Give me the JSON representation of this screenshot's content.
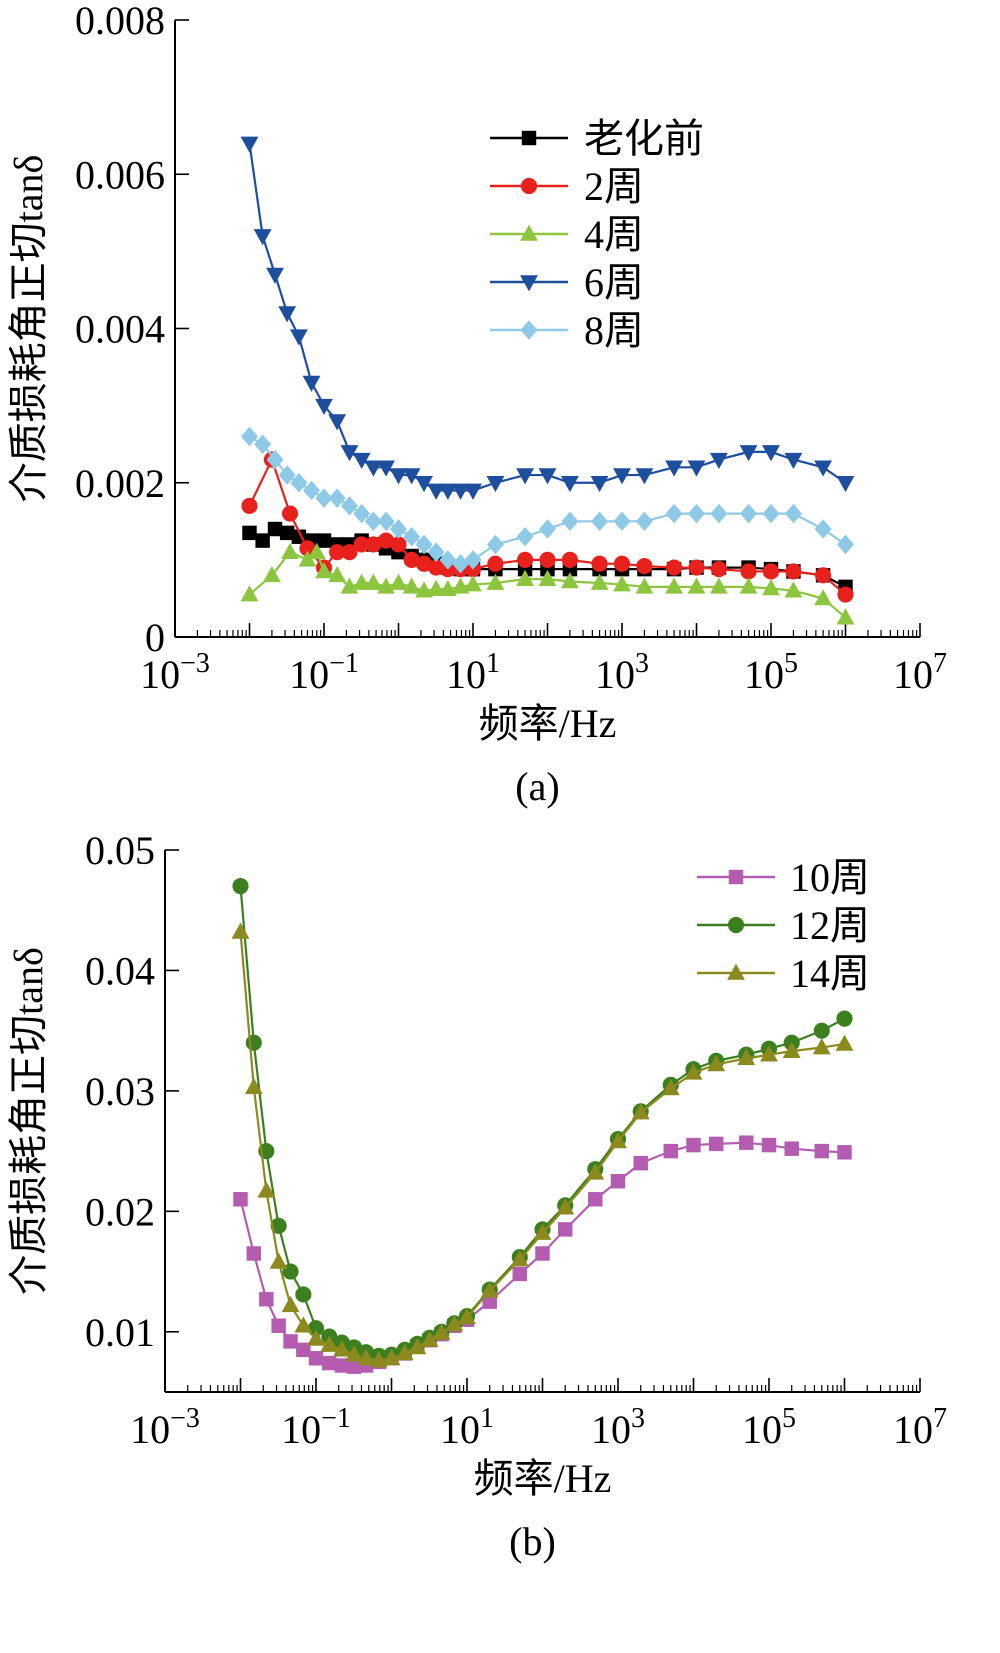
{
  "chart_data": [
    {
      "type": "line",
      "panel_label": "(a)",
      "xlabel": "频率/Hz",
      "ylabel": "介质损耗角正切tanδ",
      "xscale": "log",
      "xlim": [
        0.001,
        10000000
      ],
      "ylim": [
        0,
        0.008
      ],
      "x_ticks": [
        0.001,
        0.1,
        10,
        1000,
        100000,
        10000000
      ],
      "x_tick_labels": [
        {
          "base": "10",
          "exp": "−3"
        },
        {
          "base": "10",
          "exp": "−1"
        },
        {
          "base": "10",
          "exp": "1"
        },
        {
          "base": "10",
          "exp": "3"
        },
        {
          "base": "10",
          "exp": "5"
        },
        {
          "base": "10",
          "exp": "7"
        }
      ],
      "y_ticks": [
        0,
        0.002,
        0.004,
        0.006,
        0.008
      ],
      "y_tick_labels": [
        "0",
        "0.002",
        "0.004",
        "0.006",
        "0.008"
      ],
      "legend_position": "top-right",
      "series": [
        {
          "name": "老化前",
          "color": "#000000",
          "marker": "square",
          "x": [
            0.01,
            0.015,
            0.022,
            0.032,
            0.046,
            0.068,
            0.1,
            0.15,
            0.22,
            0.32,
            0.46,
            0.68,
            1,
            1.5,
            2.2,
            3.2,
            4.6,
            6.8,
            10,
            20,
            50,
            100,
            200,
            500,
            1000,
            2000,
            5000,
            10000,
            20000,
            50000,
            100000,
            200000,
            500000,
            1000000
          ],
          "y": [
            0.00135,
            0.00125,
            0.0014,
            0.00135,
            0.0013,
            0.00125,
            0.00125,
            0.0012,
            0.0012,
            0.00125,
            0.0012,
            0.00115,
            0.0011,
            0.00105,
            0.001,
            0.00095,
            0.0009,
            0.00088,
            0.00088,
            0.00088,
            0.00088,
            0.00088,
            0.00088,
            0.00088,
            0.00088,
            0.00088,
            0.00088,
            0.0009,
            0.0009,
            0.0009,
            0.00088,
            0.00085,
            0.0008,
            0.00065
          ]
        },
        {
          "name": "2周",
          "color": "#e8211c",
          "marker": "circle",
          "x": [
            0.01,
            0.02,
            0.035,
            0.06,
            0.1,
            0.15,
            0.22,
            0.32,
            0.46,
            0.68,
            1,
            1.5,
            2.2,
            3.2,
            4.6,
            6.8,
            10,
            20,
            50,
            100,
            200,
            500,
            1000,
            2000,
            5000,
            10000,
            20000,
            50000,
            100000,
            200000,
            500000,
            1000000
          ],
          "y": [
            0.0017,
            0.0023,
            0.0016,
            0.00115,
            0.0009,
            0.0011,
            0.0011,
            0.0012,
            0.0012,
            0.00125,
            0.0012,
            0.001,
            0.00095,
            0.0009,
            0.00088,
            0.00088,
            0.00088,
            0.00095,
            0.001,
            0.001,
            0.001,
            0.00095,
            0.00095,
            0.00092,
            0.0009,
            0.0009,
            0.00088,
            0.00085,
            0.00085,
            0.00085,
            0.0008,
            0.00055
          ]
        },
        {
          "name": "4周",
          "color": "#8cc63e",
          "marker": "triangle-up",
          "x": [
            0.01,
            0.02,
            0.035,
            0.06,
            0.08,
            0.1,
            0.15,
            0.22,
            0.32,
            0.46,
            0.68,
            1,
            1.5,
            2.2,
            3.2,
            4.6,
            6.8,
            10,
            20,
            50,
            100,
            200,
            500,
            1000,
            2000,
            5000,
            10000,
            20000,
            50000,
            100000,
            200000,
            500000,
            1000000
          ],
          "y": [
            0.00055,
            0.0008,
            0.0011,
            0.001,
            0.0011,
            0.00085,
            0.0008,
            0.00065,
            0.0007,
            0.0007,
            0.00065,
            0.0007,
            0.00065,
            0.0006,
            0.00062,
            0.00062,
            0.00065,
            0.00068,
            0.0007,
            0.00075,
            0.00075,
            0.00072,
            0.0007,
            0.00068,
            0.00065,
            0.00065,
            0.00065,
            0.00065,
            0.00065,
            0.00063,
            0.0006,
            0.0005,
            0.00025
          ]
        },
        {
          "name": "6周",
          "color": "#1e4e9e",
          "marker": "triangle-down",
          "x": [
            0.01,
            0.015,
            0.022,
            0.032,
            0.046,
            0.068,
            0.1,
            0.15,
            0.22,
            0.32,
            0.46,
            0.68,
            1,
            1.5,
            2.2,
            3.2,
            4.6,
            6.8,
            10,
            20,
            50,
            100,
            200,
            500,
            1000,
            2000,
            5000,
            10000,
            20000,
            50000,
            100000,
            200000,
            500000,
            1000000
          ],
          "y": [
            0.0064,
            0.0052,
            0.0047,
            0.0042,
            0.0039,
            0.0033,
            0.003,
            0.0028,
            0.0024,
            0.0023,
            0.0022,
            0.0022,
            0.0021,
            0.0021,
            0.002,
            0.0019,
            0.0019,
            0.0019,
            0.0019,
            0.002,
            0.0021,
            0.0021,
            0.002,
            0.002,
            0.0021,
            0.0021,
            0.0022,
            0.0022,
            0.0023,
            0.0024,
            0.0024,
            0.0023,
            0.0022,
            0.002
          ]
        },
        {
          "name": "8周",
          "color": "#8fc9e8",
          "marker": "diamond",
          "x": [
            0.01,
            0.015,
            0.022,
            0.032,
            0.046,
            0.068,
            0.1,
            0.15,
            0.22,
            0.32,
            0.46,
            0.68,
            1,
            1.5,
            2.2,
            3.2,
            4.6,
            6.8,
            10,
            20,
            50,
            100,
            200,
            500,
            1000,
            2000,
            5000,
            10000,
            20000,
            50000,
            100000,
            200000,
            500000,
            1000000
          ],
          "y": [
            0.0026,
            0.0025,
            0.0023,
            0.0021,
            0.002,
            0.0019,
            0.0018,
            0.0018,
            0.0017,
            0.0016,
            0.0015,
            0.0015,
            0.0014,
            0.0013,
            0.0012,
            0.0011,
            0.001,
            0.00095,
            0.001,
            0.0012,
            0.0013,
            0.0014,
            0.0015,
            0.0015,
            0.0015,
            0.0015,
            0.0016,
            0.0016,
            0.0016,
            0.0016,
            0.0016,
            0.0016,
            0.0014,
            0.0012
          ]
        }
      ]
    },
    {
      "type": "line",
      "panel_label": "(b)",
      "xlabel": "频率/Hz",
      "ylabel": "介质损耗角正切tanδ",
      "xscale": "log",
      "xlim": [
        0.001,
        10000000
      ],
      "ylim": [
        0.005,
        0.05
      ],
      "x_ticks": [
        0.001,
        0.1,
        10,
        1000,
        100000,
        10000000
      ],
      "x_tick_labels": [
        {
          "base": "10",
          "exp": "−3"
        },
        {
          "base": "10",
          "exp": "−1"
        },
        {
          "base": "10",
          "exp": "1"
        },
        {
          "base": "10",
          "exp": "3"
        },
        {
          "base": "10",
          "exp": "5"
        },
        {
          "base": "10",
          "exp": "7"
        }
      ],
      "y_ticks": [
        0.01,
        0.02,
        0.03,
        0.04,
        0.05
      ],
      "y_tick_labels": [
        "0.01",
        "0.02",
        "0.03",
        "0.04",
        "0.05"
      ],
      "legend_position": "top-right",
      "series": [
        {
          "name": "10周",
          "color": "#b45db0",
          "marker": "square",
          "x": [
            0.01,
            0.015,
            0.022,
            0.032,
            0.046,
            0.068,
            0.1,
            0.15,
            0.22,
            0.32,
            0.46,
            0.68,
            1,
            1.5,
            2.2,
            3.2,
            4.6,
            6.8,
            10,
            20,
            50,
            100,
            200,
            500,
            1000,
            2000,
            5000,
            10000,
            20000,
            50000,
            100000,
            200000,
            500000,
            1000000
          ],
          "y": [
            0.021,
            0.0165,
            0.0127,
            0.0105,
            0.0092,
            0.0085,
            0.0078,
            0.0074,
            0.0072,
            0.0071,
            0.0072,
            0.0075,
            0.0078,
            0.0082,
            0.0088,
            0.0093,
            0.0098,
            0.0105,
            0.011,
            0.0125,
            0.0148,
            0.0165,
            0.0185,
            0.021,
            0.0225,
            0.024,
            0.025,
            0.0255,
            0.0256,
            0.0257,
            0.0255,
            0.0252,
            0.025,
            0.0249
          ]
        },
        {
          "name": "12周",
          "color": "#3c7f1e",
          "marker": "circle",
          "x": [
            0.01,
            0.015,
            0.022,
            0.032,
            0.046,
            0.068,
            0.1,
            0.15,
            0.22,
            0.32,
            0.46,
            0.68,
            1,
            1.5,
            2.2,
            3.2,
            4.6,
            6.8,
            10,
            20,
            50,
            100,
            200,
            500,
            1000,
            2000,
            5000,
            10000,
            20000,
            50000,
            100000,
            200000,
            500000,
            1000000
          ],
          "y": [
            0.047,
            0.034,
            0.025,
            0.0188,
            0.015,
            0.0131,
            0.0103,
            0.0096,
            0.0091,
            0.0087,
            0.0083,
            0.008,
            0.0081,
            0.0085,
            0.009,
            0.0095,
            0.01,
            0.0107,
            0.0113,
            0.0135,
            0.0162,
            0.0185,
            0.0205,
            0.0235,
            0.026,
            0.0283,
            0.0305,
            0.0318,
            0.0325,
            0.033,
            0.0335,
            0.034,
            0.035,
            0.036
          ]
        },
        {
          "name": "14周",
          "color": "#8c8a1e",
          "marker": "triangle-up",
          "x": [
            0.01,
            0.015,
            0.022,
            0.032,
            0.046,
            0.068,
            0.1,
            0.15,
            0.22,
            0.32,
            0.46,
            0.68,
            1,
            1.5,
            2.2,
            3.2,
            4.6,
            6.8,
            10,
            20,
            50,
            100,
            200,
            500,
            1000,
            2000,
            5000,
            10000,
            20000,
            50000,
            100000,
            200000,
            500000,
            1000000
          ],
          "y": [
            0.0432,
            0.0303,
            0.0217,
            0.0158,
            0.0122,
            0.0105,
            0.0094,
            0.0089,
            0.0085,
            0.0081,
            0.0078,
            0.0076,
            0.0078,
            0.0082,
            0.0087,
            0.0093,
            0.0099,
            0.0106,
            0.0112,
            0.0134,
            0.016,
            0.0182,
            0.0203,
            0.0232,
            0.0258,
            0.0282,
            0.0302,
            0.0315,
            0.0322,
            0.0327,
            0.033,
            0.0333,
            0.0336,
            0.0339
          ]
        }
      ]
    }
  ]
}
